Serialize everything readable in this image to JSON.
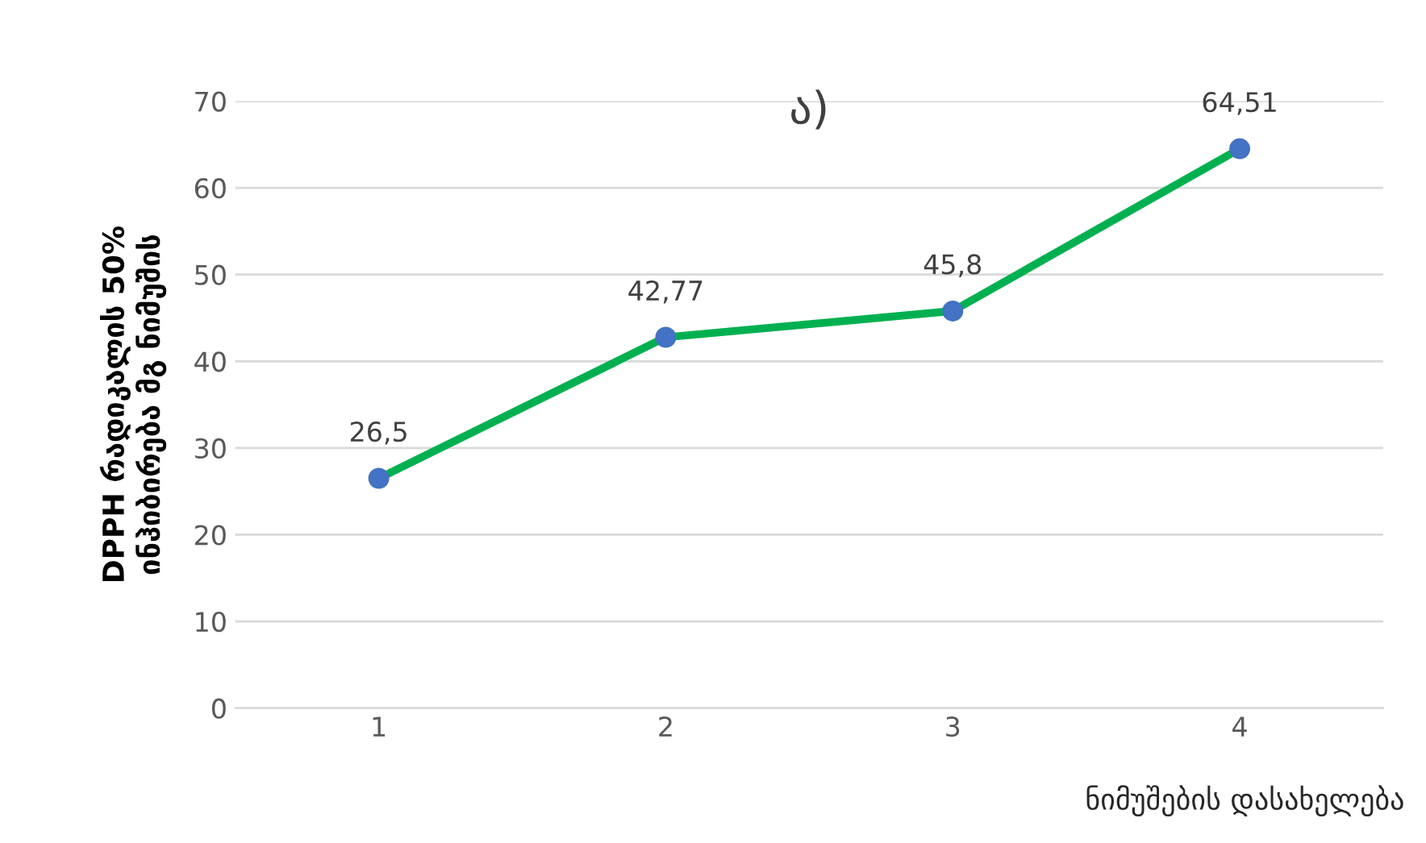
{
  "chart_data": {
    "type": "line",
    "title": "ა)",
    "xlabel": "ნიმუშების დასახელება",
    "ylabel": "DPPH რადიკალის 50%\nინჰიბირება მგ ნიმუშის",
    "categories": [
      "1",
      "2",
      "3",
      "4"
    ],
    "series": [
      {
        "color": "#00b050",
        "colors": [
          "#4472c4",
          "#4472c4",
          "#4472c4",
          "#4472c4"
        ],
        "values": [
          26.5,
          42.77,
          45.8,
          64.51
        ],
        "value_labels": [
          "26,5",
          "42,77",
          "45,8",
          "64,51"
        ]
      }
    ],
    "ylim": [
      0,
      70
    ],
    "yticks": [
      0,
      10,
      20,
      30,
      40,
      50,
      60,
      70
    ],
    "grid": "y",
    "legend": false,
    "marker": "circle",
    "line_style": "solid"
  }
}
